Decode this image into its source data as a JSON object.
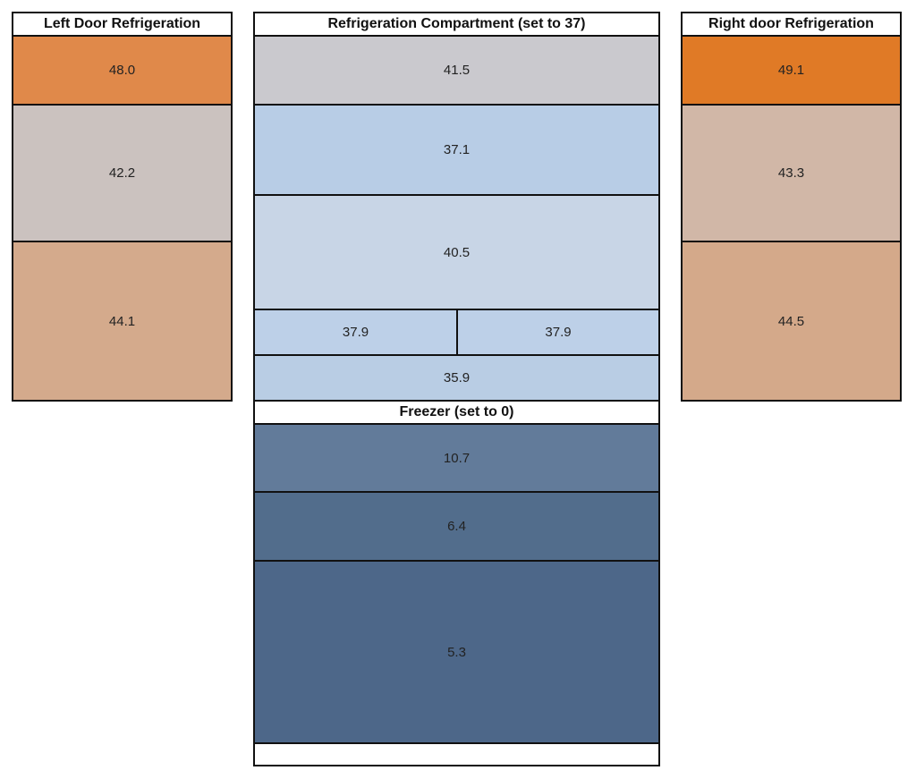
{
  "panels": [
    {
      "title": "Left Door Refrigeration",
      "cells": [
        {
          "value": "48.0",
          "color": "#e0894a"
        },
        {
          "value": "42.2",
          "color": "#cbc2bf"
        },
        {
          "value": "44.1",
          "color": "#d4aa8c"
        }
      ]
    },
    {
      "title": "Refrigeration Compartment (set to 37)",
      "cells": [
        {
          "value": "41.5",
          "color": "#cac9ce"
        },
        {
          "value": "37.1",
          "color": "#b8cde6"
        },
        {
          "value": "40.5",
          "color": "#c8d5e6"
        },
        {
          "value": "37.9",
          "color": "#bdd0e8"
        },
        {
          "value": "37.9",
          "color": "#bdd0e8"
        },
        {
          "value": "35.9",
          "color": "#b9cde4"
        }
      ]
    },
    {
      "title": "Freezer (set to 0)",
      "cells": [
        {
          "value": "10.7",
          "color": "#627b9a"
        },
        {
          "value": "6.4",
          "color": "#526d8c"
        },
        {
          "value": "5.3",
          "color": "#4d6789"
        }
      ]
    },
    {
      "title": "Right door Refrigeration",
      "cells": [
        {
          "value": "49.1",
          "color": "#e07a26"
        },
        {
          "value": "43.3",
          "color": "#d1b7a7"
        },
        {
          "value": "44.5",
          "color": "#d4a98a"
        }
      ]
    }
  ]
}
